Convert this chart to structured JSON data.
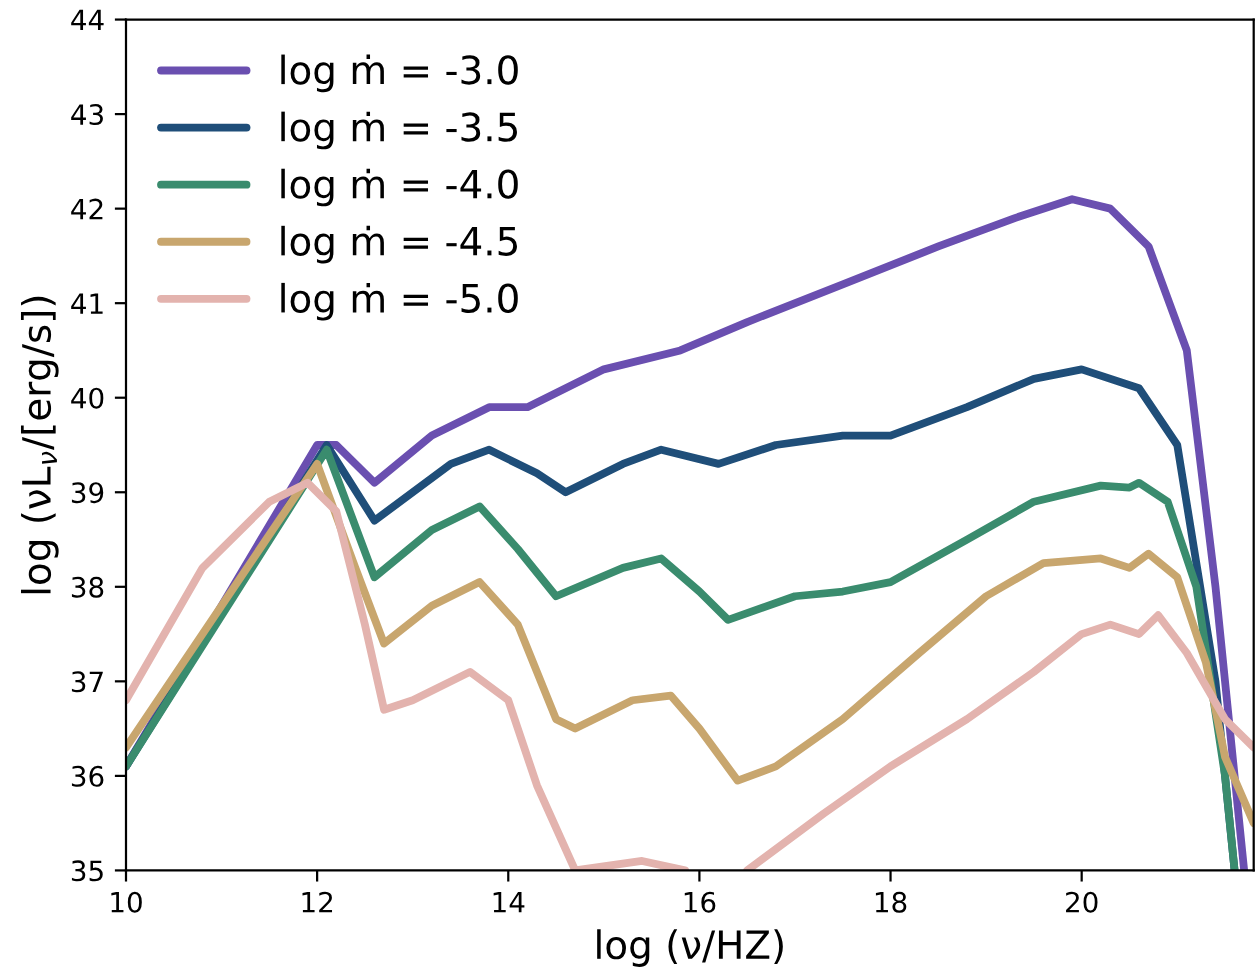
{
  "chart_data": {
    "type": "line",
    "xlabel": "log (ν/HZ)",
    "ylabel": "log (νL$_{ν}$/[erg/s])",
    "xlim": [
      10,
      21.8
    ],
    "xticks": [
      10,
      12,
      14,
      16,
      18,
      20
    ],
    "ylim": [
      35,
      44
    ],
    "yticks": [
      35,
      36,
      37,
      38,
      39,
      40,
      41,
      42,
      43,
      44
    ],
    "grid": false,
    "legend": "top left",
    "marker": "none",
    "line_style": "solid",
    "series": [
      {
        "name": "log ṁ = -3.0",
        "color": "#6a4fb0",
        "x": [
          10,
          12,
          12.2,
          12.6,
          13.2,
          13.8,
          14.2,
          15,
          15.8,
          16.5,
          17.5,
          18.5,
          19.3,
          19.9,
          20.3,
          20.7,
          21.1,
          21.4,
          21.7
        ],
        "values": [
          36.1,
          39.5,
          39.5,
          39.1,
          39.6,
          39.9,
          39.9,
          40.3,
          40.5,
          40.8,
          41.2,
          41.6,
          41.9,
          42.1,
          42.0,
          41.6,
          40.5,
          38,
          35
        ]
      },
      {
        "name": "log ṁ = -3.5",
        "color": "#1f4e79",
        "x": [
          10,
          12.1,
          12.6,
          13.4,
          13.8,
          14.3,
          14.6,
          15.2,
          15.6,
          16.2,
          16.8,
          17.5,
          18,
          18.8,
          19.5,
          20,
          20.6,
          21,
          21.4,
          21.6
        ],
        "values": [
          36.1,
          39.5,
          38.7,
          39.3,
          39.45,
          39.2,
          39.0,
          39.3,
          39.45,
          39.3,
          39.5,
          39.6,
          39.6,
          39.9,
          40.2,
          40.3,
          40.1,
          39.5,
          37,
          35
        ]
      },
      {
        "name": "log ṁ = -4.0",
        "color": "#3a8c6e",
        "x": [
          10,
          12.1,
          12.6,
          13.2,
          13.7,
          14.1,
          14.5,
          15.2,
          15.6,
          16,
          16.3,
          17,
          17.5,
          18,
          18.8,
          19.5,
          20.2,
          20.5,
          20.6,
          20.9,
          21.2,
          21.5,
          21.6
        ],
        "values": [
          36.1,
          39.45,
          38.1,
          38.6,
          38.85,
          38.4,
          37.9,
          38.2,
          38.3,
          37.95,
          37.65,
          37.9,
          37.95,
          38.05,
          38.5,
          38.9,
          39.07,
          39.05,
          39.1,
          38.9,
          38,
          36,
          35
        ]
      },
      {
        "name": "log ṁ = -4.5",
        "color": "#c8a66e",
        "x": [
          10,
          12,
          12.4,
          12.7,
          13.2,
          13.7,
          14.1,
          14.5,
          14.7,
          15.3,
          15.7,
          16,
          16.4,
          16.8,
          17.5,
          18.3,
          19,
          19.6,
          20.2,
          20.5,
          20.7,
          21,
          21.3,
          21.5,
          21.8
        ],
        "values": [
          36.3,
          39.3,
          38.2,
          37.4,
          37.8,
          38.05,
          37.6,
          36.6,
          36.5,
          36.8,
          36.85,
          36.5,
          35.95,
          36.1,
          36.6,
          37.3,
          37.9,
          38.25,
          38.3,
          38.2,
          38.35,
          38.1,
          37.2,
          36.2,
          35.5
        ]
      },
      {
        "name": "log ṁ = -5.0",
        "color": "#e3b3ae",
        "x": [
          10,
          10.8,
          11.5,
          11.9,
          12.2,
          12.5,
          12.7,
          13,
          13.6,
          14,
          14.3,
          14.7,
          15.4,
          15.85,
          16.2,
          16.5,
          17.3,
          18,
          18.8,
          19.5,
          20,
          20.3,
          20.6,
          20.8,
          21.1,
          21.5,
          21.8
        ],
        "values": [
          36.8,
          38.2,
          38.9,
          39.1,
          38.8,
          37.6,
          36.7,
          36.8,
          37.1,
          36.8,
          35.9,
          35.0,
          35.1,
          35.0,
          null,
          35.0,
          35.6,
          36.1,
          36.6,
          37.1,
          37.5,
          37.6,
          37.5,
          37.7,
          37.3,
          36.6,
          36.3
        ]
      }
    ]
  }
}
